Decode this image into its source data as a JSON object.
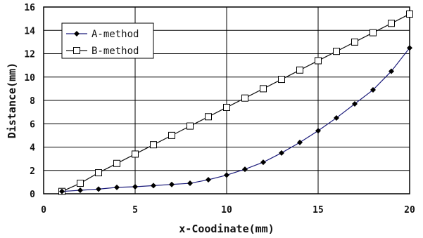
{
  "chart_data": {
    "type": "line",
    "title": "",
    "xlabel": "x-Coodinate(mm)",
    "ylabel": "Distance(mm)",
    "xlim": [
      0,
      20
    ],
    "ylim": [
      0,
      16
    ],
    "xticks": [
      "0",
      "5",
      "10",
      "15",
      "20"
    ],
    "yticks": [
      "0",
      "2",
      "4",
      "6",
      "8",
      "10",
      "12",
      "14",
      "16"
    ],
    "grid": true,
    "legend_position": "top-left",
    "x": [
      1,
      2,
      3,
      4,
      5,
      6,
      7,
      8,
      9,
      10,
      11,
      12,
      13,
      14,
      15,
      16,
      17,
      18,
      19,
      20
    ],
    "series": [
      {
        "name": "A-method",
        "marker": "filled-diamond",
        "line_color": "#1a1a7a",
        "values": [
          0.2,
          0.3,
          0.4,
          0.55,
          0.6,
          0.7,
          0.8,
          0.9,
          1.2,
          1.6,
          2.1,
          2.7,
          3.5,
          4.4,
          5.4,
          6.5,
          7.7,
          8.9,
          10.5,
          12.5
        ]
      },
      {
        "name": "B-method",
        "marker": "open-square",
        "line_color": "#111111",
        "values": [
          0.2,
          0.9,
          1.8,
          2.6,
          3.4,
          4.2,
          5.0,
          5.8,
          6.6,
          7.4,
          8.2,
          9.0,
          9.8,
          10.6,
          11.4,
          12.2,
          13.0,
          13.8,
          14.6,
          15.4
        ]
      }
    ]
  }
}
